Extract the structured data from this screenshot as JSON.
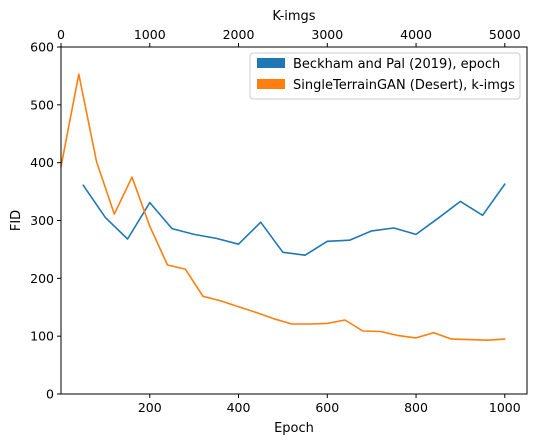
{
  "chart_data": {
    "type": "line",
    "xlabel": "Epoch",
    "x2label": "K-imgs",
    "ylabel": "FID",
    "xlim": [
      0,
      1050
    ],
    "x2lim": [
      0,
      5250
    ],
    "ylim": [
      0,
      600
    ],
    "xticks": [
      200,
      400,
      600,
      800,
      1000
    ],
    "x2ticks": [
      0,
      1000,
      2000,
      3000,
      4000,
      5000
    ],
    "yticks": [
      0,
      100,
      200,
      300,
      400,
      500,
      600
    ],
    "grid": false,
    "legend_position": "top-right",
    "series": [
      {
        "name": "Beckham and Pal (2019), epoch",
        "axis": "bottom",
        "color": "#1f77b4",
        "x": [
          50,
          100,
          150,
          200,
          250,
          300,
          350,
          400,
          450,
          500,
          550,
          600,
          650,
          700,
          750,
          800,
          850,
          900,
          950,
          1000
        ],
        "y": [
          361,
          305,
          268,
          331,
          286,
          276,
          269,
          259,
          297,
          245,
          240,
          264,
          266,
          282,
          287,
          276,
          304,
          333,
          309,
          363
        ]
      },
      {
        "name": "SingleTerrainGAN (Desert), k-imgs",
        "axis": "top",
        "color": "#ff7f0e",
        "x": [
          0,
          200,
          400,
          600,
          800,
          1000,
          1200,
          1400,
          1600,
          1800,
          2000,
          2200,
          2400,
          2600,
          2800,
          3000,
          3200,
          3400,
          3600,
          3800,
          4000,
          4200,
          4400,
          4600,
          4800,
          5000
        ],
        "y": [
          393,
          553,
          402,
          311,
          375,
          290,
          223,
          216,
          169,
          161,
          151,
          141,
          130,
          121,
          121,
          122,
          128,
          109,
          108,
          101,
          97,
          106,
          95,
          94,
          93,
          95
        ]
      }
    ]
  }
}
